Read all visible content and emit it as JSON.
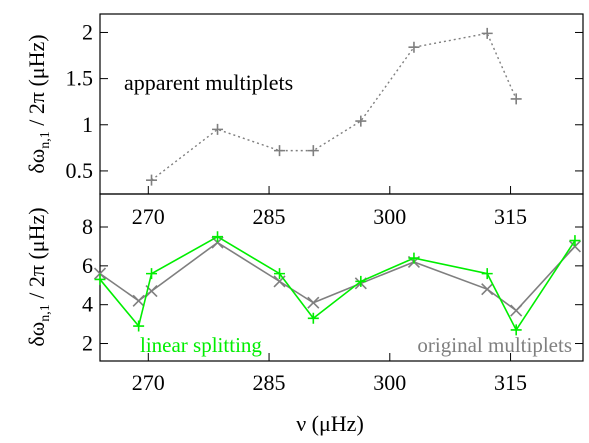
{
  "chart_data": [
    {
      "type": "line",
      "annotation": "apparent multiplets",
      "ylabel": "δω_{n,1} / 2π (μHz)",
      "xlim": [
        264,
        324
      ],
      "ylim": [
        0.25,
        2.2
      ],
      "y_ticks": [
        "0.5",
        "1",
        "1.5",
        "2"
      ],
      "x_ticks_top": [
        "270",
        "285",
        "300",
        "315"
      ],
      "grid": false,
      "series": [
        {
          "color": "#7f7f7f",
          "line_style": "dotted",
          "marker": "plus",
          "x": [
            270.4,
            278.6,
            286.3,
            290.5,
            296.4,
            303.0,
            312.1,
            315.7
          ],
          "y": [
            0.4,
            0.95,
            0.72,
            0.72,
            1.04,
            1.84,
            1.99,
            1.28
          ]
        }
      ]
    },
    {
      "type": "line",
      "xlabel": "ν (μHz)",
      "ylabel": "δω_{n,1} / 2π (μHz)",
      "xlim": [
        264,
        324
      ],
      "ylim": [
        1.1,
        9.7
      ],
      "y_ticks": [
        "2",
        "4",
        "6",
        "8"
      ],
      "x_ticks": [
        "270",
        "285",
        "300",
        "315"
      ],
      "grid": false,
      "legend_position": "bottom",
      "series": [
        {
          "name": "linear splitting",
          "color": "#00ee00",
          "marker": "plus",
          "x": [
            264.0,
            268.8,
            270.4,
            278.6,
            286.3,
            290.5,
            296.4,
            303.0,
            312.1,
            315.7,
            323.0
          ],
          "y": [
            5.3,
            2.9,
            5.6,
            7.5,
            5.6,
            3.3,
            5.2,
            6.4,
            5.6,
            2.7,
            7.3
          ]
        },
        {
          "name": "original multiplets",
          "color": "#7f7f7f",
          "marker": "cross",
          "x": [
            264.0,
            268.8,
            270.4,
            278.6,
            286.3,
            290.5,
            296.4,
            303.0,
            312.1,
            315.7,
            323.0
          ],
          "y": [
            5.6,
            4.2,
            4.7,
            7.2,
            5.2,
            4.1,
            5.1,
            6.2,
            4.8,
            3.7,
            7.0
          ]
        }
      ]
    }
  ]
}
